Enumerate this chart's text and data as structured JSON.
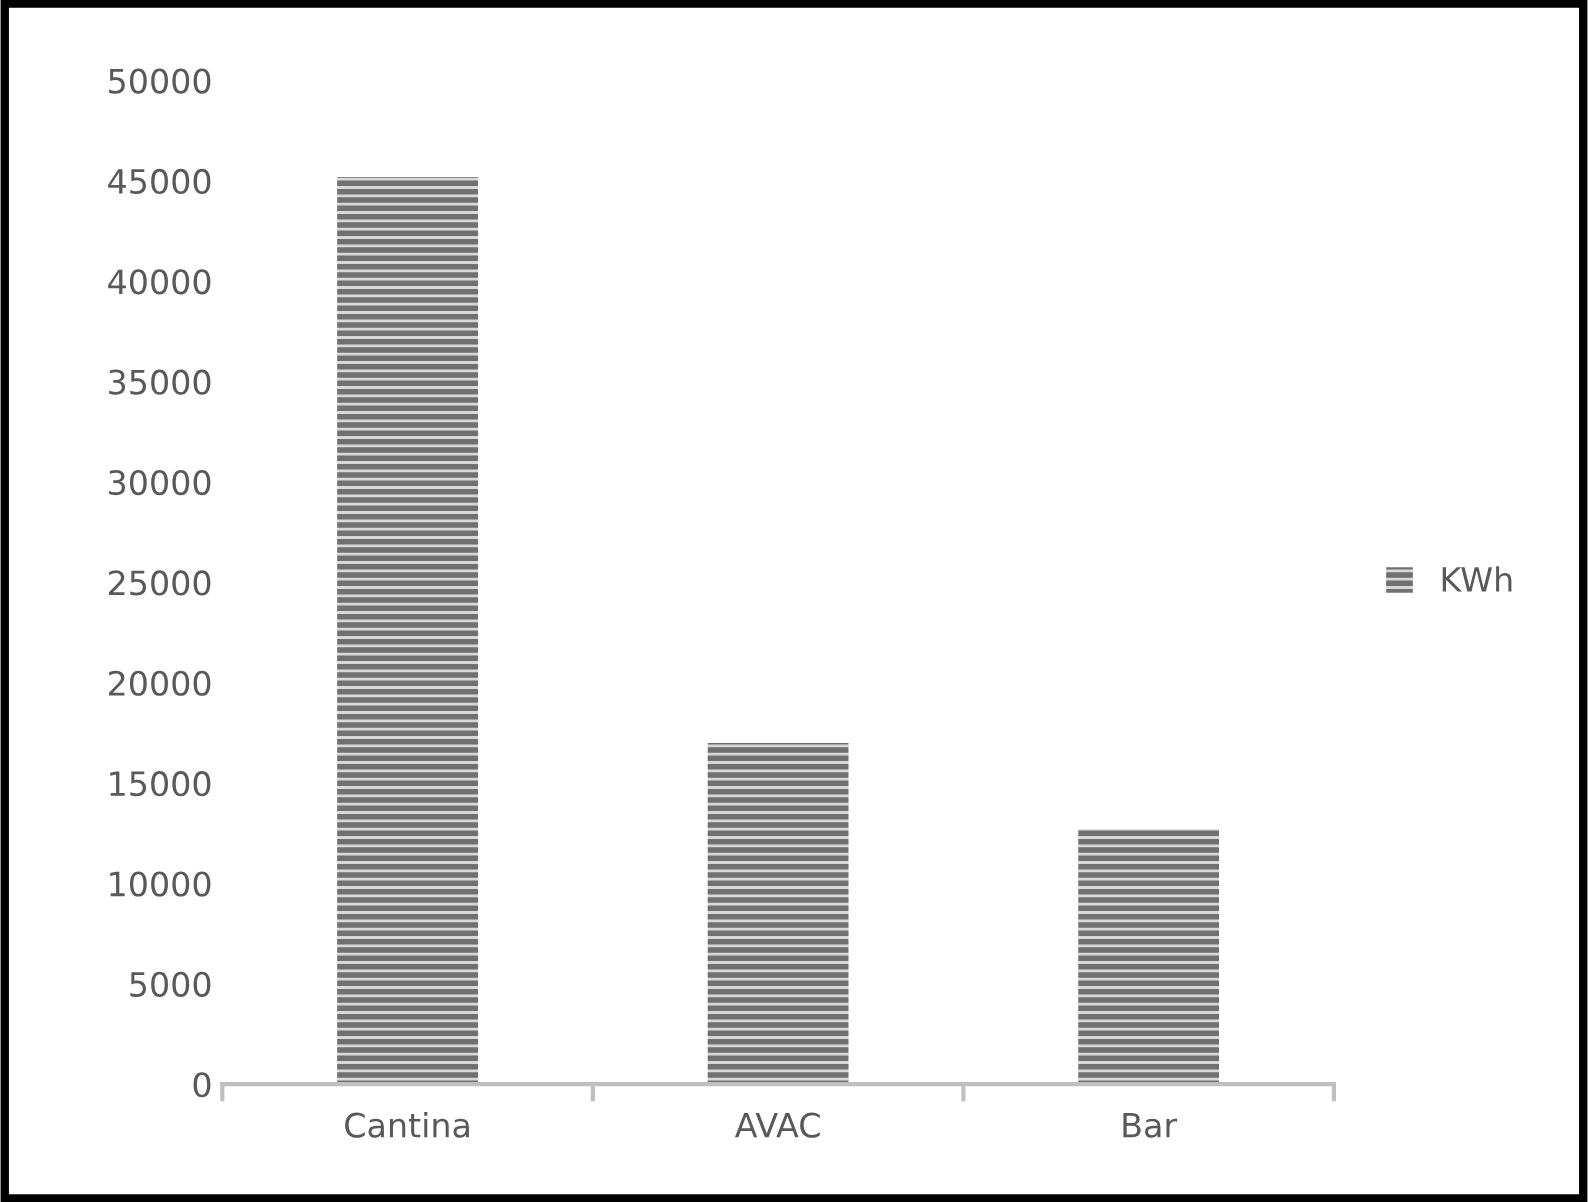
{
  "chart_data": {
    "type": "bar",
    "categories": [
      "Cantina",
      "AVAC",
      "Bar"
    ],
    "series": [
      {
        "name": "KWh",
        "color": "#707070",
        "values": [
          45200,
          17000,
          12700
        ]
      }
    ],
    "ylim": [
      0,
      50000
    ],
    "yticks": [
      0,
      5000,
      10000,
      15000,
      20000,
      25000,
      30000,
      35000,
      40000,
      45000,
      50000
    ],
    "grid": false,
    "legend": "right"
  }
}
